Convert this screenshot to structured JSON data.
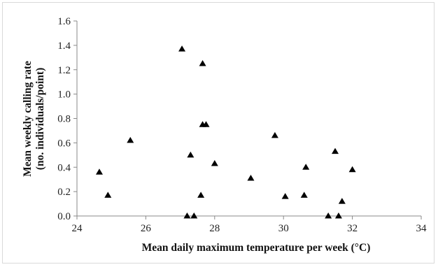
{
  "chart_data": {
    "type": "scatter",
    "xlabel": "Mean daily maximum temperature per week (°C)",
    "ylabel_lines": [
      "Mean weekly calling rate",
      "(no. individuals/point)"
    ],
    "xlim": [
      24,
      34
    ],
    "ylim": [
      0,
      1.6
    ],
    "x_ticks": [
      "24",
      "26",
      "28",
      "30",
      "32",
      "34"
    ],
    "y_ticks": [
      "0.0",
      "0.2",
      "0.4",
      "0.6",
      "0.8",
      "1.0",
      "1.2",
      "1.4",
      "1.6"
    ],
    "marker": "triangle",
    "marker_color": "#000000",
    "grid": false,
    "points": [
      {
        "x": 24.65,
        "y": 0.36
      },
      {
        "x": 24.9,
        "y": 0.17
      },
      {
        "x": 25.55,
        "y": 0.62
      },
      {
        "x": 27.05,
        "y": 1.37
      },
      {
        "x": 27.2,
        "y": 0.0
      },
      {
        "x": 27.3,
        "y": 0.5
      },
      {
        "x": 27.4,
        "y": 0.0
      },
      {
        "x": 27.6,
        "y": 0.17
      },
      {
        "x": 27.65,
        "y": 1.25
      },
      {
        "x": 27.65,
        "y": 0.75
      },
      {
        "x": 27.75,
        "y": 0.75
      },
      {
        "x": 28.0,
        "y": 0.43
      },
      {
        "x": 29.05,
        "y": 0.31
      },
      {
        "x": 29.75,
        "y": 0.66
      },
      {
        "x": 30.05,
        "y": 0.16
      },
      {
        "x": 30.6,
        "y": 0.17
      },
      {
        "x": 30.65,
        "y": 0.4
      },
      {
        "x": 31.3,
        "y": 0.0
      },
      {
        "x": 31.5,
        "y": 0.53
      },
      {
        "x": 31.6,
        "y": 0.0
      },
      {
        "x": 31.7,
        "y": 0.12
      },
      {
        "x": 32.0,
        "y": 0.38
      }
    ]
  }
}
